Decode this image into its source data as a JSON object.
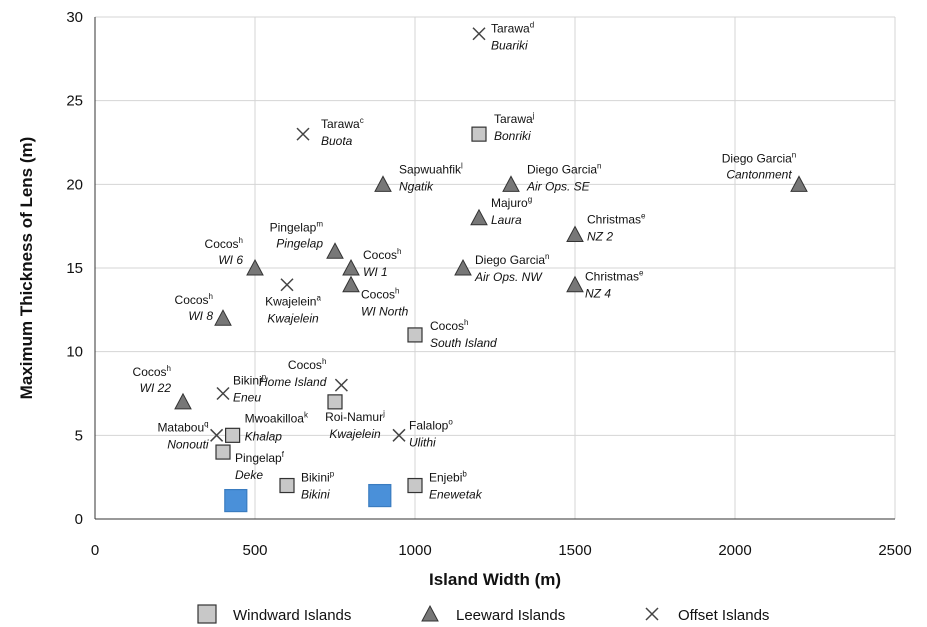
{
  "chart_data": {
    "type": "scatter",
    "x_label": "Island Width (m)",
    "y_label": "Maximum Thickness of Lens (m)",
    "xlim": [
      0,
      2500
    ],
    "xticks": [
      0,
      500,
      1000,
      1500,
      2000,
      2500
    ],
    "ylim": [
      0,
      30
    ],
    "yticks": [
      0,
      5,
      10,
      15,
      20,
      25,
      30
    ],
    "grid": true,
    "series": [
      {
        "name": "Windward Islands",
        "marker": "square",
        "color": "#c8c8c8",
        "x": [
          1200,
          1000,
          750,
          430,
          400,
          600,
          1000
        ],
        "values": [
          23,
          11,
          7,
          5,
          4,
          2,
          2
        ],
        "labels": [
          "Tarawa",
          "Cocos",
          "Roi-Namur",
          "Mwoakilloa",
          "Pingelap",
          "Bikini",
          "Enjebi"
        ],
        "label_notes": [
          "j",
          "h",
          "j",
          "k",
          "f",
          "p",
          "b"
        ],
        "sublabels": [
          "Bonriki",
          "South Island",
          "Kwajelein",
          "Khalap",
          "Deke",
          "Bikini",
          "Enewetak"
        ]
      },
      {
        "name": "Leeward Islands",
        "marker": "triangle",
        "color": "#777777",
        "x": [
          900,
          1300,
          2200,
          1200,
          1500,
          750,
          500,
          800,
          1150,
          800,
          1500,
          400,
          275
        ],
        "values": [
          20,
          20,
          20,
          18,
          17,
          16,
          15,
          15,
          15,
          14,
          14,
          12,
          7
        ],
        "labels": [
          "Sapwuahfik",
          "Diego Garcia",
          "Diego Garcia",
          "Majuro",
          "Christmas",
          "Pingelap",
          "Cocos",
          "Cocos",
          "Diego Garcia",
          "Cocos",
          "Christmas",
          "Cocos",
          "Cocos"
        ],
        "label_notes": [
          "l",
          "n",
          "n",
          "g",
          "e",
          "m",
          "h",
          "h",
          "n",
          "h",
          "e",
          "h",
          "h"
        ],
        "sublabels": [
          "Ngatik",
          "Air Ops. SE",
          "Cantonment",
          "Laura",
          "NZ 2",
          "Pingelap",
          "WI 6",
          "WI 1",
          "Air Ops. NW",
          "WI North",
          "NZ 4",
          "WI 8",
          "WI 22"
        ]
      },
      {
        "name": "Offset Islands",
        "marker": "x",
        "color": "#444444",
        "x": [
          1200,
          650,
          600,
          400,
          770,
          380,
          950
        ],
        "values": [
          29,
          23,
          14,
          7.5,
          8,
          5,
          5
        ],
        "labels": [
          "Tarawa",
          "Tarawa",
          "Kwajelein",
          "Bikini",
          "Cocos",
          "Matabou",
          "Falalop"
        ],
        "label_notes": [
          "d",
          "c",
          "a",
          "p",
          "h",
          "q",
          "o"
        ],
        "sublabels": [
          "Buariki",
          "Buota",
          "Kwajelein",
          "Eneu",
          "Home Island",
          "Nonouti",
          "Ulithi"
        ]
      },
      {
        "marker": "square",
        "color": "#4a90d9",
        "x": [
          440,
          890
        ],
        "values": [
          1.1,
          1.4
        ]
      }
    ]
  }
}
